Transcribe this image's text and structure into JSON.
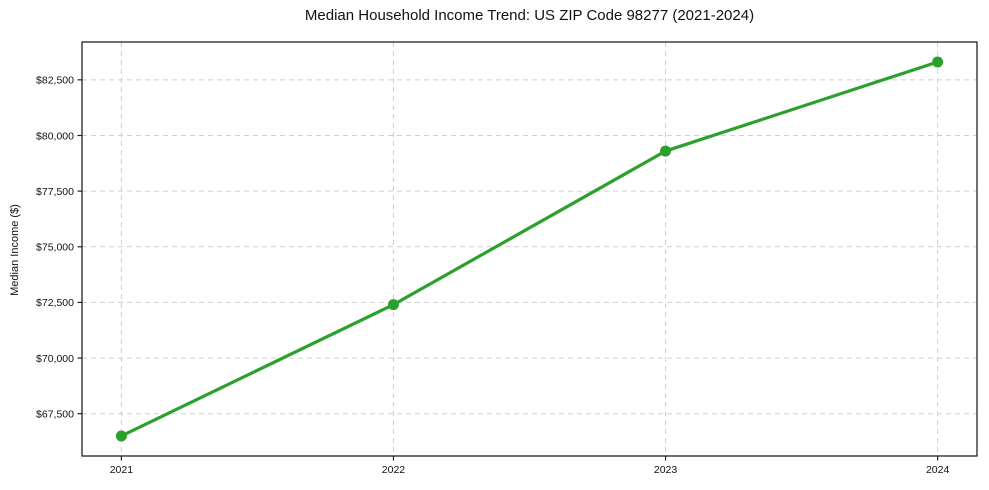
{
  "chart_data": {
    "type": "line",
    "title": "Median Household Income Trend: US ZIP Code 98277 (2021-2024)",
    "xlabel": "",
    "ylabel": "Median Income ($)",
    "categories": [
      "2021",
      "2022",
      "2023",
      "2024"
    ],
    "series": [
      {
        "name": "Median Household Income",
        "values": [
          66500,
          72400,
          79300,
          83300
        ],
        "color": "#2ca02c",
        "marker": "circle",
        "line_width": 3.2,
        "marker_radius": 5.5
      }
    ],
    "yticks": {
      "values": [
        67500,
        70000,
        72500,
        75000,
        77500,
        80000,
        82500
      ],
      "labels": [
        "$67,500",
        "$70,000",
        "$72,500",
        "$75,000",
        "$77,500",
        "$80,000",
        "$82,500"
      ]
    },
    "ylim": [
      65600,
      84200
    ],
    "x_margin_frac": 0.044,
    "grid": true,
    "grid_style": "dashed",
    "legend_position": "none",
    "colors": {
      "line": "#2ca02c",
      "grid": "#cfcfcf",
      "axis": "#222222",
      "text": "#111111",
      "background": "#ffffff"
    }
  }
}
